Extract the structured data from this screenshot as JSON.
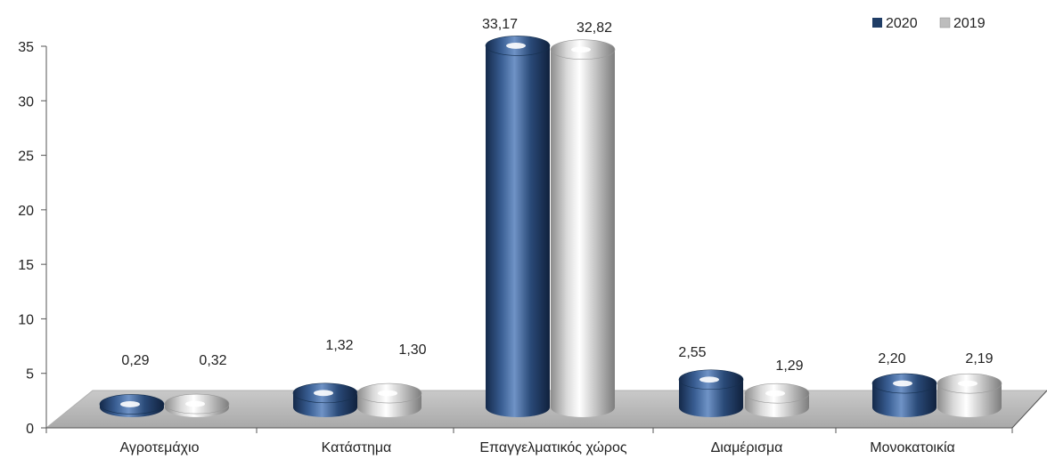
{
  "chart_data": {
    "type": "bar",
    "categories": [
      "Αγροτεμάχιο",
      "Κατάστημα",
      "Επαγγελματικός χώρος",
      "Διαμέρισμα",
      "Μονοκατοικία"
    ],
    "series": [
      {
        "name": "2020",
        "values": [
          0.29,
          1.32,
          33.17,
          2.55,
          2.2
        ],
        "labels": [
          "0,29",
          "1,32",
          "33,17",
          "2,55",
          "2,20"
        ],
        "color": "#1f3d66"
      },
      {
        "name": "2019",
        "values": [
          0.32,
          1.3,
          32.82,
          1.29,
          2.19
        ],
        "labels": [
          "0,32",
          "1,30",
          "32,82",
          "1,29",
          "2,19"
        ],
        "color": "#bdbdbd"
      }
    ],
    "yticks": [
      "0",
      "5",
      "10",
      "15",
      "20",
      "25",
      "30",
      "35"
    ],
    "ylim": [
      0,
      35
    ],
    "legend_position": "top-right",
    "grid": false,
    "style": "3d-cylinder"
  }
}
